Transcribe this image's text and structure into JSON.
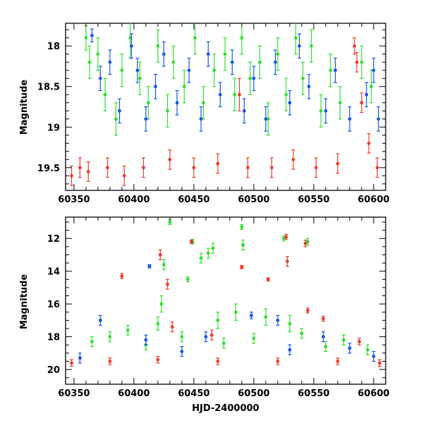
{
  "chart_data": [
    {
      "type": "scatter",
      "panel": "top",
      "title": "",
      "xlabel": "",
      "ylabel": "Magnitude",
      "xlim": [
        60343,
        60610
      ],
      "ylim": [
        19.78,
        17.72
      ],
      "y_inverted": true,
      "xticks": [
        60350,
        60400,
        60450,
        60500,
        60550,
        60600
      ],
      "xtick_labels": [
        "60350",
        "60400",
        "60450",
        "60500",
        "60550",
        "60600"
      ],
      "yticks": [
        18,
        18.5,
        19,
        19.5
      ],
      "ytick_labels": [
        "18",
        "18.5",
        "19",
        "19.5"
      ],
      "grid": false,
      "series": [
        {
          "color": "#33dd33",
          "points": [
            [
              60360,
              17.9,
              0.15
            ],
            [
              60363,
              18.2,
              0.2
            ],
            [
              60370,
              18.1,
              0.2
            ],
            [
              60376,
              18.6,
              0.2
            ],
            [
              60385,
              18.9,
              0.2
            ],
            [
              60390,
              18.3,
              0.2
            ],
            [
              60397,
              17.9,
              0.25
            ],
            [
              60405,
              18.4,
              0.2
            ],
            [
              60412,
              18.7,
              0.2
            ],
            [
              60420,
              18.0,
              0.2
            ],
            [
              60428,
              18.8,
              0.2
            ],
            [
              60433,
              18.2,
              0.2
            ],
            [
              60442,
              18.5,
              0.2
            ],
            [
              60451,
              17.9,
              0.2
            ],
            [
              60458,
              18.7,
              0.2
            ],
            [
              60467,
              18.3,
              0.2
            ],
            [
              60476,
              18.1,
              0.2
            ],
            [
              60484,
              18.6,
              0.2
            ],
            [
              60490,
              17.9,
              0.2
            ],
            [
              60497,
              18.4,
              0.2
            ],
            [
              60505,
              18.2,
              0.2
            ],
            [
              60512,
              18.9,
              0.2
            ],
            [
              60520,
              18.1,
              0.2
            ],
            [
              60527,
              18.6,
              0.2
            ],
            [
              60535,
              17.9,
              0.2
            ],
            [
              60541,
              18.4,
              0.2
            ],
            [
              60548,
              18.0,
              0.2
            ],
            [
              60556,
              18.8,
              0.2
            ],
            [
              60564,
              18.3,
              0.2
            ],
            [
              60572,
              18.7,
              0.2
            ],
            [
              60590,
              18.2,
              0.2
            ],
            [
              60598,
              18.5,
              0.2
            ]
          ]
        },
        {
          "color": "#1a55e6",
          "points": [
            [
              60365,
              17.87,
              0.08
            ],
            [
              60372,
              18.4,
              0.15
            ],
            [
              60380,
              18.2,
              0.15
            ],
            [
              60388,
              18.8,
              0.15
            ],
            [
              60398,
              18.0,
              0.15
            ],
            [
              60403,
              18.3,
              0.15
            ],
            [
              60410,
              18.9,
              0.15
            ],
            [
              60418,
              18.5,
              0.15
            ],
            [
              60425,
              18.1,
              0.15
            ],
            [
              60436,
              18.7,
              0.15
            ],
            [
              60446,
              18.3,
              0.15
            ],
            [
              60456,
              18.9,
              0.15
            ],
            [
              60462,
              18.1,
              0.15
            ],
            [
              60472,
              18.6,
              0.15
            ],
            [
              60482,
              18.2,
              0.15
            ],
            [
              60492,
              18.8,
              0.15
            ],
            [
              60500,
              18.4,
              0.15
            ],
            [
              60510,
              18.9,
              0.15
            ],
            [
              60518,
              18.2,
              0.15
            ],
            [
              60530,
              18.7,
              0.15
            ],
            [
              60538,
              18.0,
              0.15
            ],
            [
              60546,
              18.5,
              0.15
            ],
            [
              60560,
              18.8,
              0.15
            ],
            [
              60568,
              18.3,
              0.15
            ],
            [
              60580,
              18.9,
              0.15
            ],
            [
              60594,
              18.6,
              0.15
            ],
            [
              60600,
              18.3,
              0.15
            ],
            [
              60604,
              18.9,
              0.15
            ]
          ]
        },
        {
          "color": "#ee3b2b",
          "points": [
            [
              60348,
              19.6,
              0.12
            ],
            [
              60355,
              19.5,
              0.12
            ],
            [
              60362,
              19.55,
              0.12
            ],
            [
              60378,
              19.5,
              0.12
            ],
            [
              60392,
              19.6,
              0.12
            ],
            [
              60408,
              19.5,
              0.12
            ],
            [
              60430,
              19.4,
              0.12
            ],
            [
              60450,
              19.5,
              0.12
            ],
            [
              60470,
              19.45,
              0.12
            ],
            [
              60488,
              18.6,
              0.2
            ],
            [
              60495,
              19.5,
              0.12
            ],
            [
              60515,
              19.5,
              0.12
            ],
            [
              60533,
              19.4,
              0.12
            ],
            [
              60552,
              19.5,
              0.12
            ],
            [
              60570,
              19.45,
              0.12
            ],
            [
              60584,
              18.0,
              0.1
            ],
            [
              60586,
              18.2,
              0.12
            ],
            [
              60590,
              18.7,
              0.12
            ],
            [
              60596,
              19.2,
              0.12
            ],
            [
              60603,
              19.5,
              0.12
            ]
          ]
        }
      ]
    },
    {
      "type": "scatter",
      "panel": "bottom",
      "title": "",
      "xlabel": "HJD-2400000",
      "ylabel": "Magnitude",
      "xlim": [
        60343,
        60610
      ],
      "ylim": [
        20.9,
        10.7
      ],
      "y_inverted": true,
      "xticks": [
        60350,
        60400,
        60450,
        60500,
        60550,
        60600
      ],
      "xtick_labels": [
        "60350",
        "60400",
        "60450",
        "60500",
        "60550",
        "60600"
      ],
      "yticks": [
        12,
        14,
        16,
        18,
        20
      ],
      "ytick_labels": [
        "12",
        "14",
        "16",
        "18",
        "20"
      ],
      "grid": false,
      "series": [
        {
          "color": "#33dd33",
          "points": [
            [
              60430,
              11.0,
              0.15
            ],
            [
              60445,
              14.5,
              0.15
            ],
            [
              60449,
              12.2,
              0.15
            ],
            [
              60456,
              13.2,
              0.3
            ],
            [
              60462,
              12.9,
              0.3
            ],
            [
              60466,
              12.6,
              0.3
            ],
            [
              60425,
              13.6,
              0.3
            ],
            [
              60490,
              11.3,
              0.15
            ],
            [
              60491,
              12.4,
              0.3
            ],
            [
              60525,
              12.0,
              0.15
            ],
            [
              60545,
              12.2,
              0.2
            ],
            [
              60423,
              16.0,
              0.5
            ],
            [
              60485,
              16.5,
              0.5
            ],
            [
              60470,
              17.0,
              0.5
            ],
            [
              60510,
              16.8,
              0.5
            ],
            [
              60530,
              17.2,
              0.5
            ],
            [
              60365,
              18.3,
              0.3
            ],
            [
              60380,
              18.0,
              0.3
            ],
            [
              60395,
              17.6,
              0.3
            ],
            [
              60410,
              18.5,
              0.3
            ],
            [
              60420,
              17.2,
              0.4
            ],
            [
              60440,
              18.0,
              0.3
            ],
            [
              60475,
              18.4,
              0.3
            ],
            [
              60500,
              18.1,
              0.3
            ],
            [
              60540,
              17.8,
              0.3
            ],
            [
              60560,
              18.6,
              0.3
            ],
            [
              60575,
              18.2,
              0.3
            ],
            [
              60595,
              18.8,
              0.3
            ]
          ]
        },
        {
          "color": "#1a55e6",
          "points": [
            [
              60413,
              13.7,
              0.1
            ],
            [
              60372,
              17.0,
              0.3
            ],
            [
              60410,
              18.2,
              0.3
            ],
            [
              60460,
              18.0,
              0.3
            ],
            [
              60498,
              16.7,
              0.2
            ],
            [
              60520,
              17.0,
              0.3
            ],
            [
              60558,
              18.0,
              0.3
            ],
            [
              60580,
              18.7,
              0.3
            ],
            [
              60600,
              19.2,
              0.3
            ],
            [
              60355,
              19.3,
              0.3
            ],
            [
              60440,
              18.9,
              0.3
            ],
            [
              60530,
              18.8,
              0.3
            ]
          ]
        },
        {
          "color": "#ee3b2b",
          "points": [
            [
              60390,
              14.3,
              0.15
            ],
            [
              60422,
              13.0,
              0.3
            ],
            [
              60428,
              14.8,
              0.3
            ],
            [
              60448,
              12.2,
              0.1
            ],
            [
              60490,
              13.75,
              0.1
            ],
            [
              60512,
              14.5,
              0.1
            ],
            [
              60527,
              11.9,
              0.15
            ],
            [
              60528,
              13.4,
              0.3
            ],
            [
              60543,
              12.3,
              0.2
            ],
            [
              60545,
              16.4,
              0.15
            ],
            [
              60558,
              16.9,
              0.15
            ],
            [
              60432,
              17.4,
              0.3
            ],
            [
              60465,
              17.9,
              0.3
            ],
            [
              60348,
              19.6,
              0.2
            ],
            [
              60380,
              19.5,
              0.2
            ],
            [
              60420,
              19.4,
              0.2
            ],
            [
              60470,
              19.5,
              0.2
            ],
            [
              60520,
              19.5,
              0.2
            ],
            [
              60570,
              19.5,
              0.2
            ],
            [
              60588,
              18.3,
              0.2
            ],
            [
              60605,
              19.6,
              0.2
            ]
          ]
        }
      ]
    }
  ]
}
